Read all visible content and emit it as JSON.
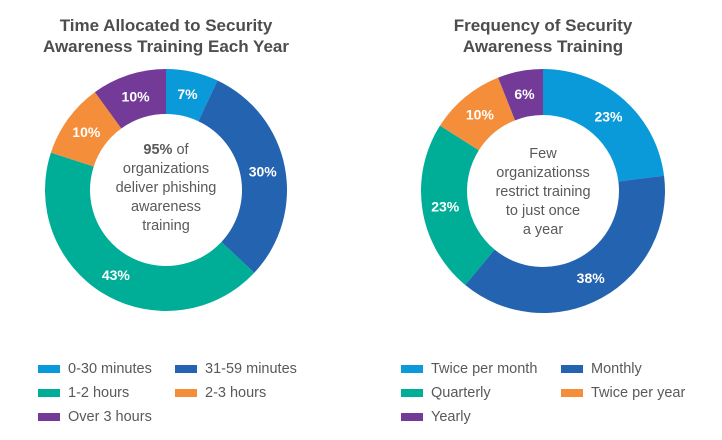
{
  "chart_data": [
    {
      "type": "pie",
      "donut": true,
      "title_lines": [
        "Time Allocated to Security",
        "Awareness Training Each Year"
      ],
      "center_text": {
        "bold": "95%",
        "lines": [
          " of",
          "organizations",
          "deliver phishing",
          "awareness",
          "training"
        ]
      },
      "categories": [
        "0-30 minutes",
        "31-59 minutes",
        "1-2 hours",
        "2-3 hours",
        "Over 3 hours"
      ],
      "values": [
        7,
        30,
        43,
        10,
        10
      ],
      "labels": [
        "7%",
        "30%",
        "43%",
        "10%",
        "10%"
      ],
      "colors": [
        "#0a9ad9",
        "#2463b0",
        "#00ae98",
        "#f58e3b",
        "#733b97"
      ],
      "legend_placement": "bottom"
    },
    {
      "type": "pie",
      "donut": true,
      "title_lines": [
        "Frequency of Security",
        "Awareness Training"
      ],
      "center_text": {
        "lines": [
          "Few",
          "organizationss",
          "restrict training",
          "to just once",
          "a year"
        ]
      },
      "categories": [
        "Twice per month",
        "Monthly",
        "Quarterly",
        "Twice per year",
        "Yearly"
      ],
      "values": [
        23,
        38,
        23,
        10,
        6
      ],
      "labels": [
        "23%",
        "38%",
        "23%",
        "10%",
        "6%"
      ],
      "colors": [
        "#0a9ad9",
        "#2463b0",
        "#00ae98",
        "#f58e3b",
        "#733b97"
      ],
      "legend_placement": "bottom"
    }
  ]
}
